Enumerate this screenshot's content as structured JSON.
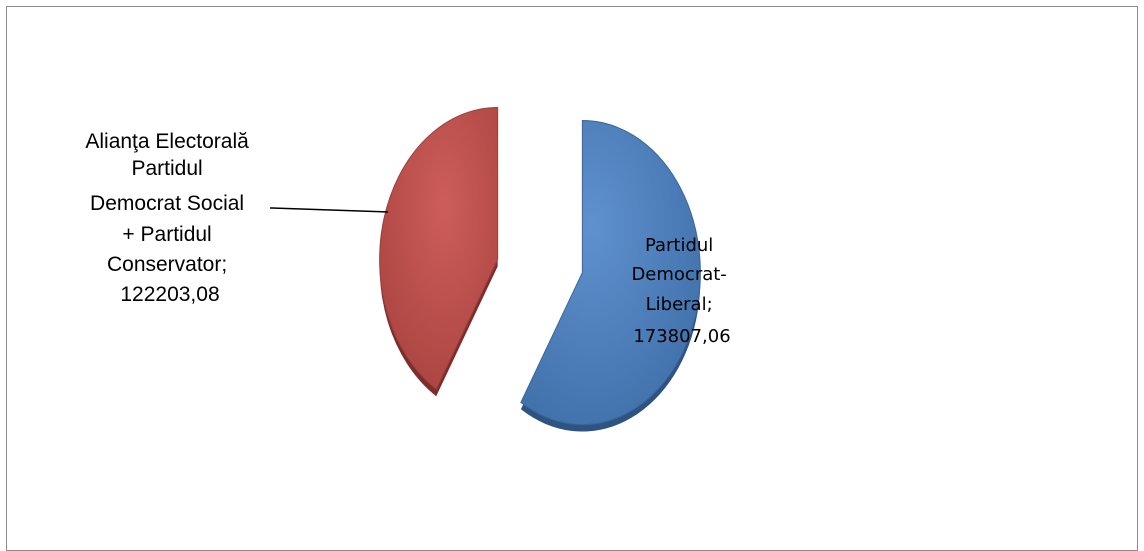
{
  "chart_data": {
    "type": "pie",
    "title": "",
    "legend": "none",
    "slices": [
      {
        "label_lines": [
          "Partidul",
          "Democrat-",
          "Liberal;",
          "173807,06"
        ],
        "value": 173807.06,
        "color": "#4f81bd"
      },
      {
        "label_lines": [
          "Alianţa Electorală",
          "Partidul",
          "Democrat Social",
          "+ Partidul",
          "Conservator;",
          "122203,08"
        ],
        "value": 122203.08,
        "color": "#c0504d"
      }
    ]
  }
}
